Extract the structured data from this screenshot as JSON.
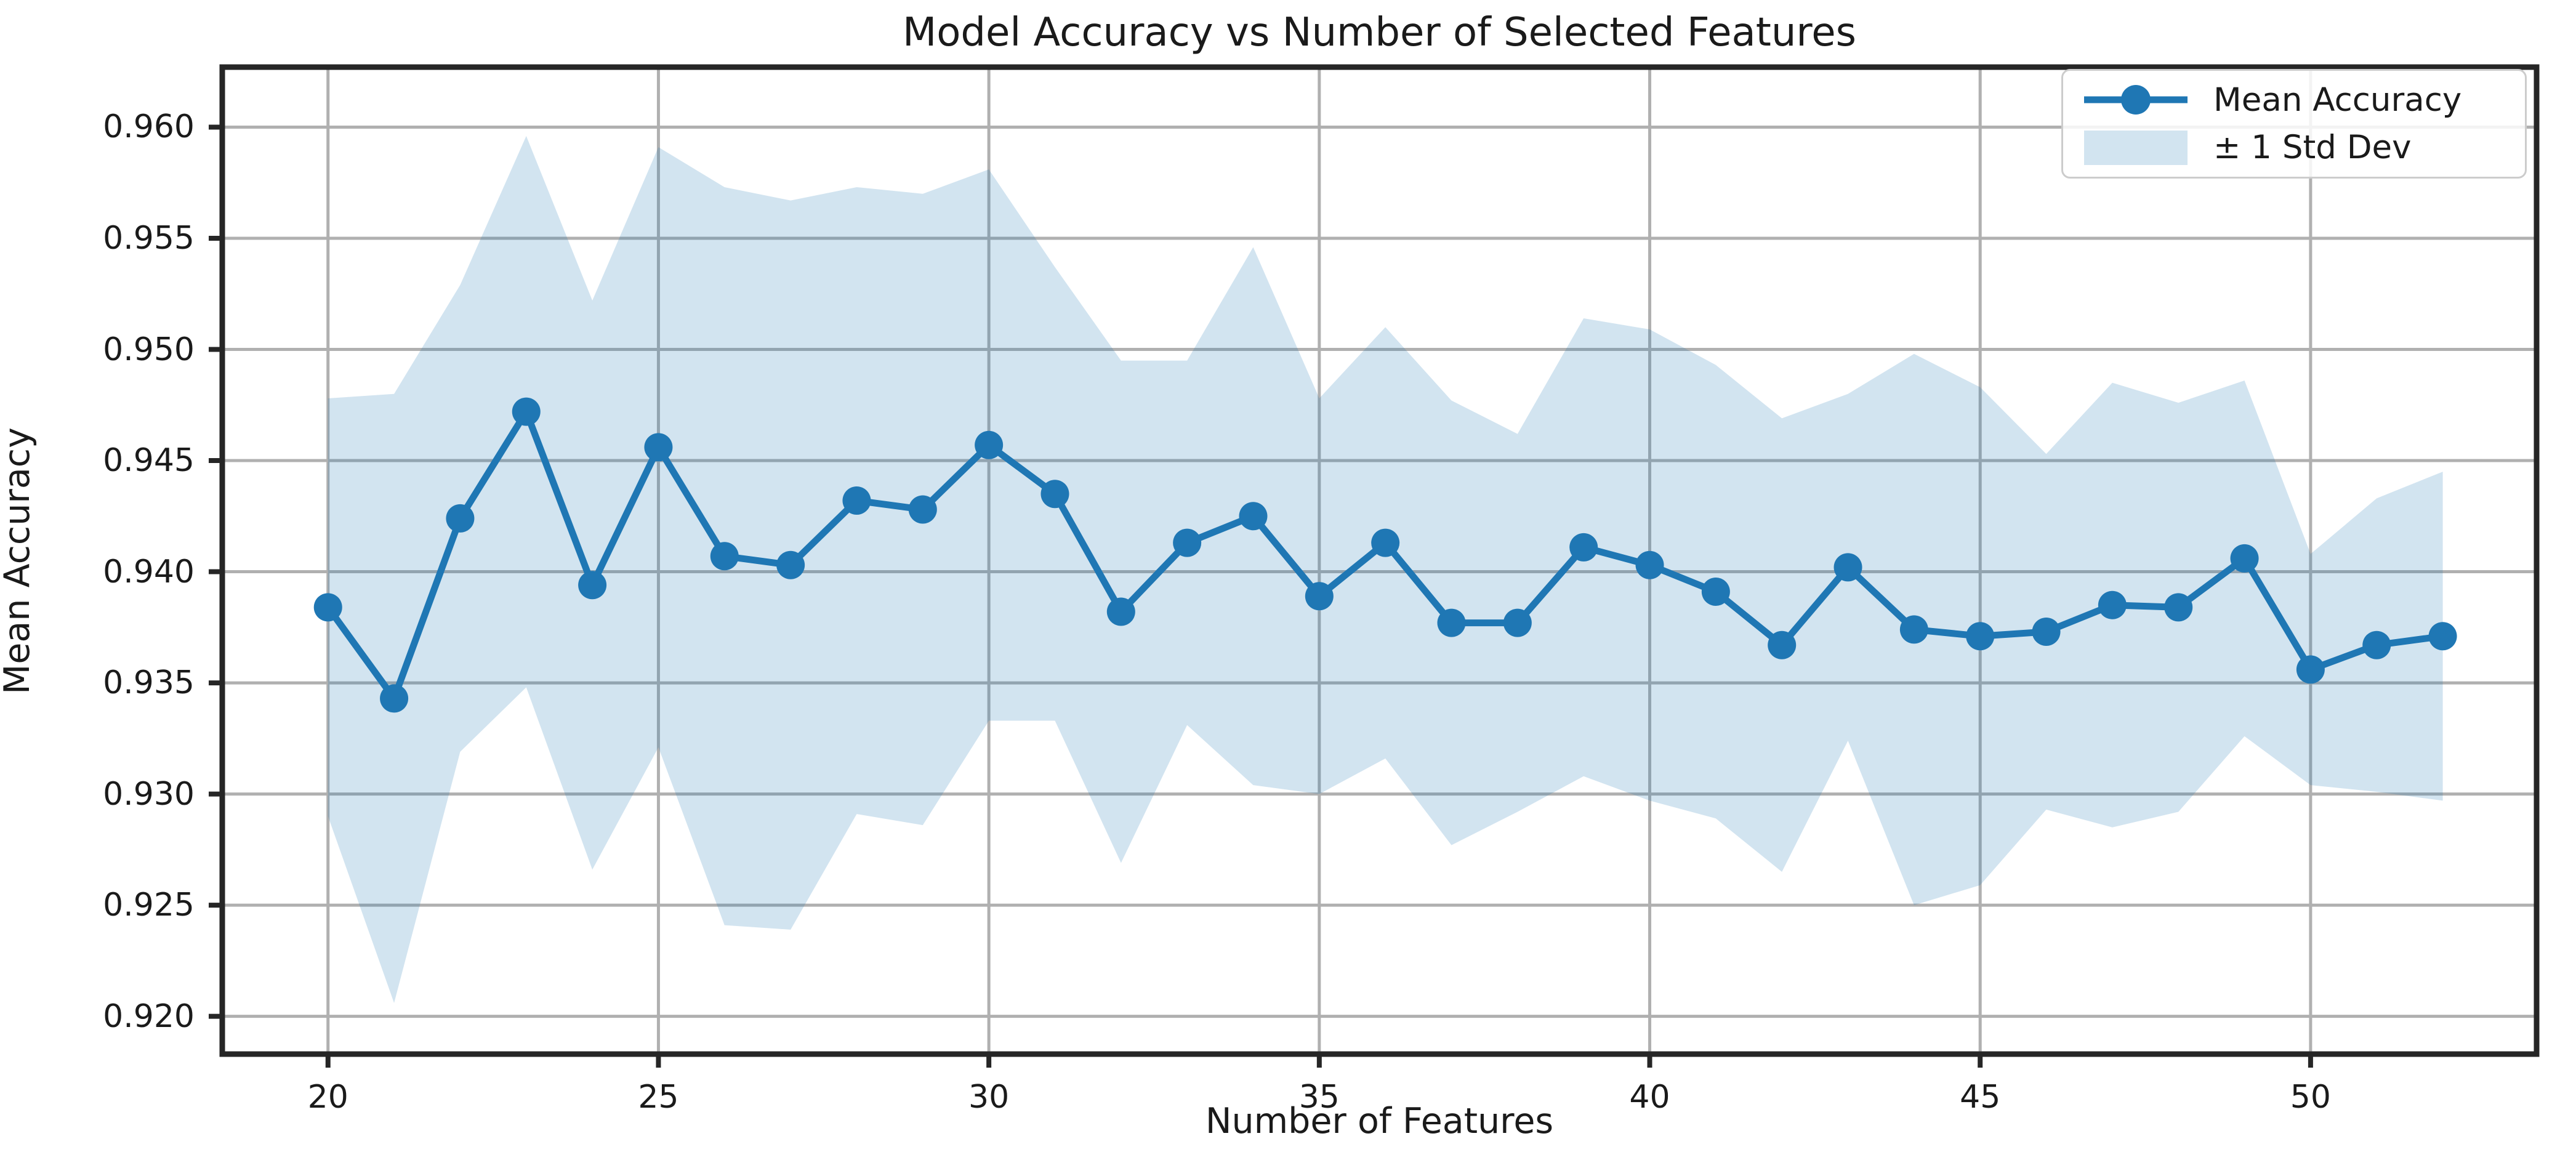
{
  "chart_data": {
    "type": "line",
    "title": "Model Accuracy vs Number of Selected Features",
    "xlabel": "Number of Features",
    "ylabel": "Mean Accuracy",
    "x": [
      20,
      21,
      22,
      23,
      24,
      25,
      26,
      27,
      28,
      29,
      30,
      31,
      32,
      33,
      34,
      35,
      36,
      37,
      38,
      39,
      40,
      41,
      42,
      43,
      44,
      45,
      46,
      47,
      48,
      49,
      50,
      51,
      52
    ],
    "series": [
      {
        "name": "Mean Accuracy",
        "style": "line-with-circle-markers",
        "values": [
          0.9384,
          0.9343,
          0.9424,
          0.9472,
          0.9394,
          0.9456,
          0.9407,
          0.9403,
          0.9432,
          0.9428,
          0.9457,
          0.9435,
          0.9382,
          0.9413,
          0.9425,
          0.9389,
          0.9413,
          0.9377,
          0.9377,
          0.9411,
          0.9403,
          0.9391,
          0.9367,
          0.9402,
          0.9374,
          0.9371,
          0.9373,
          0.9385,
          0.9384,
          0.9406,
          0.9356,
          0.9367,
          0.9371
        ]
      },
      {
        "name": "± 1 Std Dev",
        "style": "band",
        "std": [
          0.0094,
          0.0137,
          0.0105,
          0.0124,
          0.0128,
          0.0135,
          0.0166,
          0.0164,
          0.0141,
          0.0142,
          0.0124,
          0.0102,
          0.0113,
          0.0082,
          0.0121,
          0.0089,
          0.0097,
          0.01,
          0.0085,
          0.0103,
          0.0106,
          0.0102,
          0.0102,
          0.0078,
          0.0124,
          0.0112,
          0.008,
          0.01,
          0.0092,
          0.008,
          0.0052,
          0.0066,
          0.0074
        ]
      }
    ],
    "xlim": [
      18.4,
      53.42
    ],
    "ylim": [
      0.9183,
      0.9627
    ],
    "xticks": [
      20,
      25,
      30,
      35,
      40,
      45,
      50
    ],
    "yticks": [
      0.92,
      0.925,
      0.93,
      0.935,
      0.94,
      0.945,
      0.95,
      0.955,
      0.96
    ],
    "ytick_labels": [
      "0.920",
      "0.925",
      "0.930",
      "0.935",
      "0.940",
      "0.945",
      "0.950",
      "0.955",
      "0.960"
    ],
    "grid": true,
    "legend_position": "upper right",
    "colors": {
      "line": "#1f77b4",
      "band_fill": "#1f77b4",
      "band_opacity": 0.2,
      "grid": "#b0b0b0",
      "spine": "#262626",
      "text": "#1a1a1a",
      "background": "#ffffff"
    }
  }
}
